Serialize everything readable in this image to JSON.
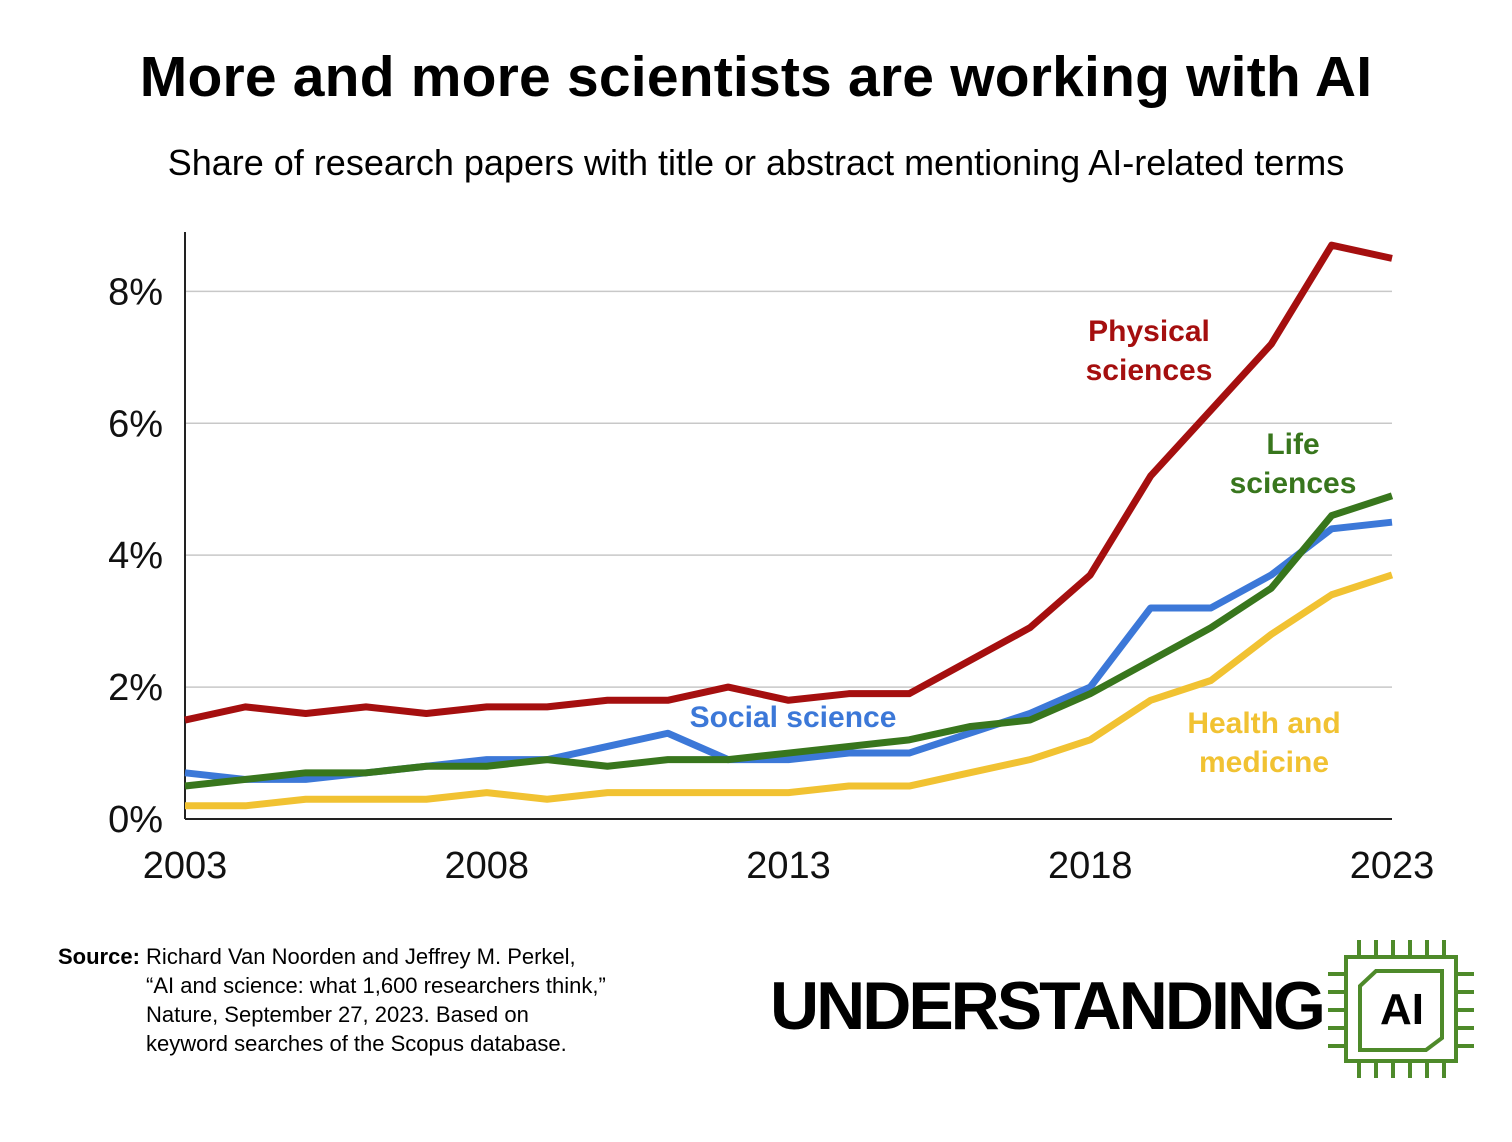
{
  "title": "More and more scientists are working with AI",
  "subtitle": "Share of research papers with title or abstract mentioning AI-related terms",
  "source": {
    "label": "Source:",
    "text": "Richard Van Noorden and Jeffrey M. Perkel,\n“AI and science: what 1,600 researchers think,”\nNature, September 27, 2023. Based on\nkeyword searches of the Scopus database."
  },
  "branding": {
    "wordmark": "UNDERSTANDING",
    "chip_text": "AI",
    "chip_color": "#4e8a2a"
  },
  "chart_data": {
    "type": "line",
    "x": [
      2003,
      2004,
      2005,
      2006,
      2007,
      2008,
      2009,
      2010,
      2011,
      2012,
      2013,
      2014,
      2015,
      2016,
      2017,
      2018,
      2019,
      2020,
      2021,
      2022,
      2023
    ],
    "xticks": [
      2003,
      2008,
      2013,
      2018,
      2023
    ],
    "xtick_labels": [
      "2003",
      "2008",
      "2013",
      "2018",
      "2023"
    ],
    "yticks": [
      0,
      2,
      4,
      6,
      8
    ],
    "ytick_labels": [
      "0%",
      "2%",
      "4%",
      "6%",
      "8%"
    ],
    "xlim": [
      2003,
      2023
    ],
    "ylim": [
      0,
      8.9
    ],
    "grid": "horizontal",
    "legend": "direct labels",
    "series": [
      {
        "name": "Physical sciences",
        "label_lines": [
          "Physical",
          "sciences"
        ],
        "color": "#a50f0f",
        "values": [
          1.5,
          1.7,
          1.6,
          1.7,
          1.6,
          1.7,
          1.7,
          1.8,
          1.8,
          2.0,
          1.8,
          1.9,
          1.9,
          2.4,
          2.9,
          3.7,
          5.2,
          6.2,
          7.2,
          8.7,
          8.5
        ]
      },
      {
        "name": "Life sciences",
        "label_lines": [
          "Life",
          "sciences"
        ],
        "color": "#38761d",
        "values": [
          0.5,
          0.6,
          0.7,
          0.7,
          0.8,
          0.8,
          0.9,
          0.8,
          0.9,
          0.9,
          1.0,
          1.1,
          1.2,
          1.4,
          1.5,
          1.9,
          2.4,
          2.9,
          3.5,
          4.6,
          4.9
        ]
      },
      {
        "name": "Social science",
        "label_lines": [
          "Social science"
        ],
        "color": "#3c78d8",
        "values": [
          0.7,
          0.6,
          0.6,
          0.7,
          0.8,
          0.9,
          0.9,
          1.1,
          1.3,
          0.9,
          0.9,
          1.0,
          1.0,
          1.3,
          1.6,
          2.0,
          3.2,
          3.2,
          3.7,
          4.4,
          4.5
        ]
      },
      {
        "name": "Health and medicine",
        "label_lines": [
          "Health and",
          "medicine"
        ],
        "color": "#f1c232",
        "values": [
          0.2,
          0.2,
          0.3,
          0.3,
          0.3,
          0.4,
          0.3,
          0.4,
          0.4,
          0.4,
          0.4,
          0.5,
          0.5,
          0.7,
          0.9,
          1.2,
          1.8,
          2.1,
          2.8,
          3.4,
          3.7
        ]
      }
    ]
  }
}
